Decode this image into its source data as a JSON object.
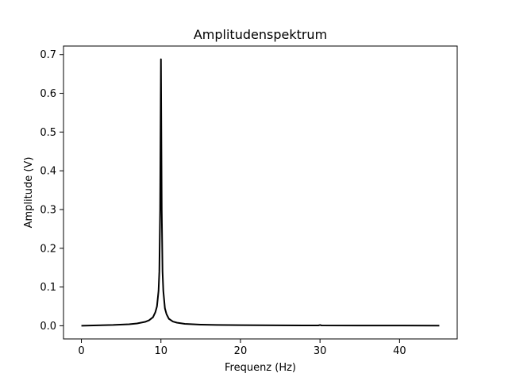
{
  "chart_data": {
    "type": "line",
    "title": "Amplitudenspektrum",
    "xlabel": "Frequenz (Hz)",
    "ylabel": "Amplitude  (V)",
    "xlim": [
      -2.25,
      47.25
    ],
    "ylim": [
      -0.034,
      0.722
    ],
    "xticks": [
      0,
      10,
      20,
      30,
      40
    ],
    "yticks": [
      0.0,
      0.1,
      0.2,
      0.3,
      0.4,
      0.5,
      0.6,
      0.7
    ],
    "xtick_labels": [
      "0",
      "10",
      "20",
      "30",
      "40"
    ],
    "ytick_labels": [
      "0.0",
      "0.1",
      "0.2",
      "0.3",
      "0.4",
      "0.5",
      "0.6",
      "0.7"
    ],
    "grid": false,
    "line_color": "#000000",
    "series": [
      {
        "x": [
          0,
          2,
          4,
          6,
          7,
          8,
          8.5,
          9,
          9.3,
          9.5,
          9.7,
          9.8,
          9.9,
          10,
          10.1,
          10.2,
          10.3,
          10.5,
          10.7,
          11,
          11.5,
          12,
          13,
          14,
          15,
          17,
          20,
          25,
          29.8,
          30,
          30.2,
          35,
          40,
          45
        ],
        "values": [
          0.0,
          0.001,
          0.002,
          0.004,
          0.006,
          0.01,
          0.014,
          0.022,
          0.035,
          0.05,
          0.09,
          0.14,
          0.3,
          0.688,
          0.3,
          0.14,
          0.09,
          0.045,
          0.03,
          0.018,
          0.011,
          0.008,
          0.005,
          0.004,
          0.003,
          0.002,
          0.0015,
          0.001,
          0.0008,
          0.002,
          0.0008,
          0.0006,
          0.0005,
          0.0004
        ]
      }
    ]
  }
}
